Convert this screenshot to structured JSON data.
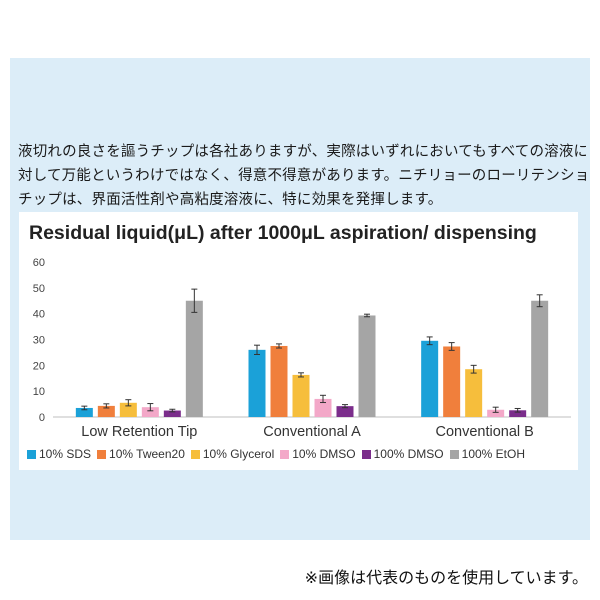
{
  "intro_lines": [
    "液切れの良さを謳うチップは各社ありますが、実際はいずれにおいてもすべての溶液に",
    "対して万能というわけではなく、得意不得意があります。ニチリョーのローリテンション",
    "チップは、界面活性剤や高粘度溶液に、特に効果を発揮します。"
  ],
  "footnote": "※画像は代表のものを使用しています。",
  "chart_data": {
    "type": "bar",
    "title": "Residual liquid(μL)  after 1000μL aspiration/ dispensing",
    "xlabel": "",
    "ylabel": "",
    "ylim": [
      0,
      60
    ],
    "yticks": [
      0,
      10,
      20,
      30,
      40,
      50,
      60
    ],
    "grid": false,
    "legend_position": "bottom",
    "error_bars": true,
    "categories": [
      "Low Retention Tip",
      "Conventional A",
      "Conventional B"
    ],
    "series": [
      {
        "name": "10% SDS",
        "color": "#1ba1d8",
        "values": [
          3.5,
          26,
          29.5
        ],
        "errors": [
          0.7,
          1.8,
          1.5
        ]
      },
      {
        "name": "10% Tween20",
        "color": "#f07f3c",
        "values": [
          4.3,
          27.5,
          27.3
        ],
        "errors": [
          0.8,
          0.8,
          1.5
        ]
      },
      {
        "name": "10% Glycerol",
        "color": "#f6be3c",
        "values": [
          5.5,
          16.3,
          18.5
        ],
        "errors": [
          1.2,
          0.8,
          1.5
        ]
      },
      {
        "name": "10% DMSO",
        "color": "#f3a8c8",
        "values": [
          3.8,
          7,
          2.8
        ],
        "errors": [
          1.4,
          1.4,
          1.0
        ]
      },
      {
        "name": "100% DMSO",
        "color": "#7b2d8b",
        "values": [
          2.5,
          4.2,
          2.6
        ],
        "errors": [
          0.5,
          0.6,
          0.7
        ]
      },
      {
        "name": "100% EtOH",
        "color": "#a5a5a5",
        "values": [
          45,
          39.3,
          45
        ],
        "errors": [
          4.5,
          0.5,
          2.3
        ]
      }
    ]
  }
}
